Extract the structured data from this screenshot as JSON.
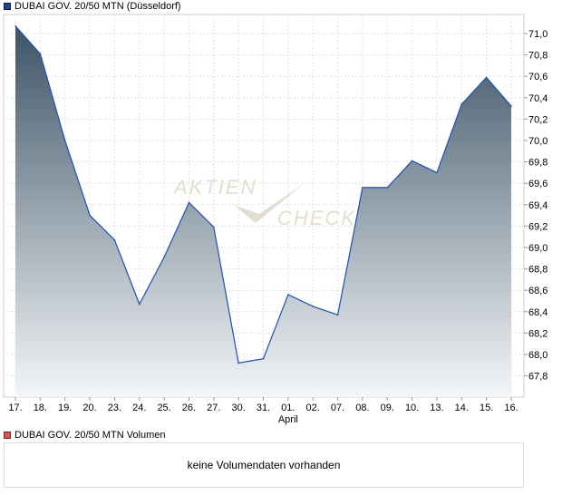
{
  "price_legend": {
    "label": "DUBAI GOV. 20/50 MTN (Düsseldorf)",
    "color": "#1f3f8f"
  },
  "volume_legend": {
    "label": "DUBAI GOV. 20/50 MTN Volumen",
    "color": "#d9534f"
  },
  "volume_message": "keine Volumendaten vorhanden",
  "watermark": {
    "word1": "Aktien",
    "word2": "Check"
  },
  "chart_data": {
    "type": "area",
    "title": "",
    "xlabel": "",
    "ylabel": "",
    "ylim": [
      67.6,
      71.1
    ],
    "yticks": [
      67.8,
      68.0,
      68.2,
      68.4,
      68.6,
      68.8,
      69.0,
      69.2,
      69.4,
      69.6,
      69.8,
      70.0,
      70.2,
      70.4,
      70.6,
      70.8,
      71.0
    ],
    "ytick_labels": [
      "67,8",
      "68,0",
      "68,2",
      "68,4",
      "68,6",
      "68,8",
      "69,0",
      "69,2",
      "69,4",
      "69,6",
      "69,8",
      "70,0",
      "70,2",
      "70,4",
      "70,6",
      "70,8",
      "71,0"
    ],
    "categories": [
      "17.",
      "18.",
      "19.",
      "20.",
      "23.",
      "24.",
      "25.",
      "26.",
      "27.",
      "30.",
      "31.",
      "01.",
      "02.",
      "07.",
      "08.",
      "09.",
      "10.",
      "13.",
      "14.",
      "15.",
      "16."
    ],
    "month_marker": {
      "label": "April",
      "category": "01."
    },
    "grid": true,
    "legend": "top-left",
    "series": [
      {
        "name": "DUBAI GOV. 20/50 MTN (Düsseldorf)",
        "values": [
          71.07,
          70.81,
          70.0,
          69.3,
          69.07,
          68.47,
          68.91,
          69.42,
          69.19,
          67.92,
          67.96,
          68.56,
          68.45,
          68.37,
          69.56,
          69.56,
          69.81,
          69.7,
          70.34,
          70.59,
          70.32
        ]
      }
    ]
  }
}
